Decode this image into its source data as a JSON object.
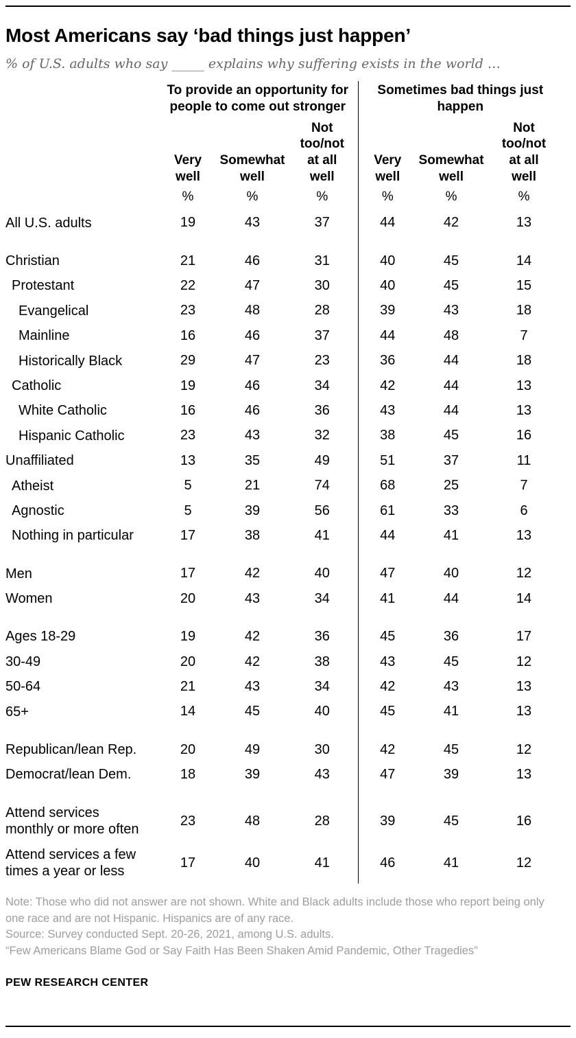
{
  "header": {
    "title": "Most Americans say ‘bad things just happen’",
    "subtitle": "% of U.S. adults who say _____ explains why suffering exists in the world …"
  },
  "chart_data": {
    "type": "table",
    "group_headers": [
      "To provide an opportunity for people to come out stronger",
      "Sometimes bad things just happen"
    ],
    "columns": [
      "Very\nwell",
      "Somewhat\nwell",
      "Not\ntoo/not\nat all\nwell",
      "Very\nwell",
      "Somewhat\nwell",
      "Not\ntoo/not\nat all\nwell"
    ],
    "unit_row": [
      "%",
      "%",
      "%",
      "%",
      "%",
      "%"
    ],
    "rows": [
      {
        "label": "All U.S. adults",
        "indent": 0,
        "group_start": false,
        "values": [
          19,
          43,
          37,
          44,
          42,
          13
        ]
      },
      {
        "label": "Christian",
        "indent": 0,
        "group_start": true,
        "values": [
          21,
          46,
          31,
          40,
          45,
          14
        ]
      },
      {
        "label": "Protestant",
        "indent": 1,
        "group_start": false,
        "values": [
          22,
          47,
          30,
          40,
          45,
          15
        ]
      },
      {
        "label": "Evangelical",
        "indent": 2,
        "group_start": false,
        "values": [
          23,
          48,
          28,
          39,
          43,
          18
        ]
      },
      {
        "label": "Mainline",
        "indent": 2,
        "group_start": false,
        "values": [
          16,
          46,
          37,
          44,
          48,
          7
        ]
      },
      {
        "label": "Historically Black",
        "indent": 2,
        "group_start": false,
        "values": [
          29,
          47,
          23,
          36,
          44,
          18
        ]
      },
      {
        "label": "Catholic",
        "indent": 1,
        "group_start": false,
        "values": [
          19,
          46,
          34,
          42,
          44,
          13
        ]
      },
      {
        "label": "White Catholic",
        "indent": 2,
        "group_start": false,
        "values": [
          16,
          46,
          36,
          43,
          44,
          13
        ]
      },
      {
        "label": "Hispanic Catholic",
        "indent": 2,
        "group_start": false,
        "values": [
          23,
          43,
          32,
          38,
          45,
          16
        ]
      },
      {
        "label": "Unaffiliated",
        "indent": 0,
        "group_start": false,
        "values": [
          13,
          35,
          49,
          51,
          37,
          11
        ]
      },
      {
        "label": "Atheist",
        "indent": 1,
        "group_start": false,
        "values": [
          5,
          21,
          74,
          68,
          25,
          7
        ]
      },
      {
        "label": "Agnostic",
        "indent": 1,
        "group_start": false,
        "values": [
          5,
          39,
          56,
          61,
          33,
          6
        ]
      },
      {
        "label": "Nothing in particular",
        "indent": 1,
        "group_start": false,
        "values": [
          17,
          38,
          41,
          44,
          41,
          13
        ]
      },
      {
        "label": "Men",
        "indent": 0,
        "group_start": true,
        "values": [
          17,
          42,
          40,
          47,
          40,
          12
        ]
      },
      {
        "label": "Women",
        "indent": 0,
        "group_start": false,
        "values": [
          20,
          43,
          34,
          41,
          44,
          14
        ]
      },
      {
        "label": "Ages 18-29",
        "indent": 0,
        "group_start": true,
        "values": [
          19,
          42,
          36,
          45,
          36,
          17
        ]
      },
      {
        "label": "30-49",
        "indent": 0,
        "group_start": false,
        "values": [
          20,
          42,
          38,
          43,
          45,
          12
        ]
      },
      {
        "label": "50-64",
        "indent": 0,
        "group_start": false,
        "values": [
          21,
          43,
          34,
          42,
          43,
          13
        ]
      },
      {
        "label": "65+",
        "indent": 0,
        "group_start": false,
        "values": [
          14,
          45,
          40,
          45,
          41,
          13
        ]
      },
      {
        "label": "Republican/lean Rep.",
        "indent": 0,
        "group_start": true,
        "values": [
          20,
          49,
          30,
          42,
          45,
          12
        ]
      },
      {
        "label": "Democrat/lean Dem.",
        "indent": 0,
        "group_start": false,
        "values": [
          18,
          39,
          43,
          47,
          39,
          13
        ]
      },
      {
        "label": "Attend services\nmonthly or more often",
        "indent": 0,
        "group_start": true,
        "values": [
          23,
          48,
          28,
          39,
          45,
          16
        ]
      },
      {
        "label": "Attend services a few\ntimes a year or less",
        "indent": 0,
        "group_start": false,
        "values": [
          17,
          40,
          41,
          46,
          41,
          12
        ]
      }
    ]
  },
  "notes": {
    "note": "Note: Those who did not answer are not shown. White and Black adults include those who report being only one race and are not Hispanic. Hispanics are of any race.",
    "source": "Source: Survey conducted Sept. 20-26, 2021, among U.S. adults.",
    "quote": "“Few Americans Blame God or Say Faith Has Been Shaken Amid Pandemic, Other Tragedies”"
  },
  "footer": {
    "brand": "PEW RESEARCH CENTER"
  }
}
